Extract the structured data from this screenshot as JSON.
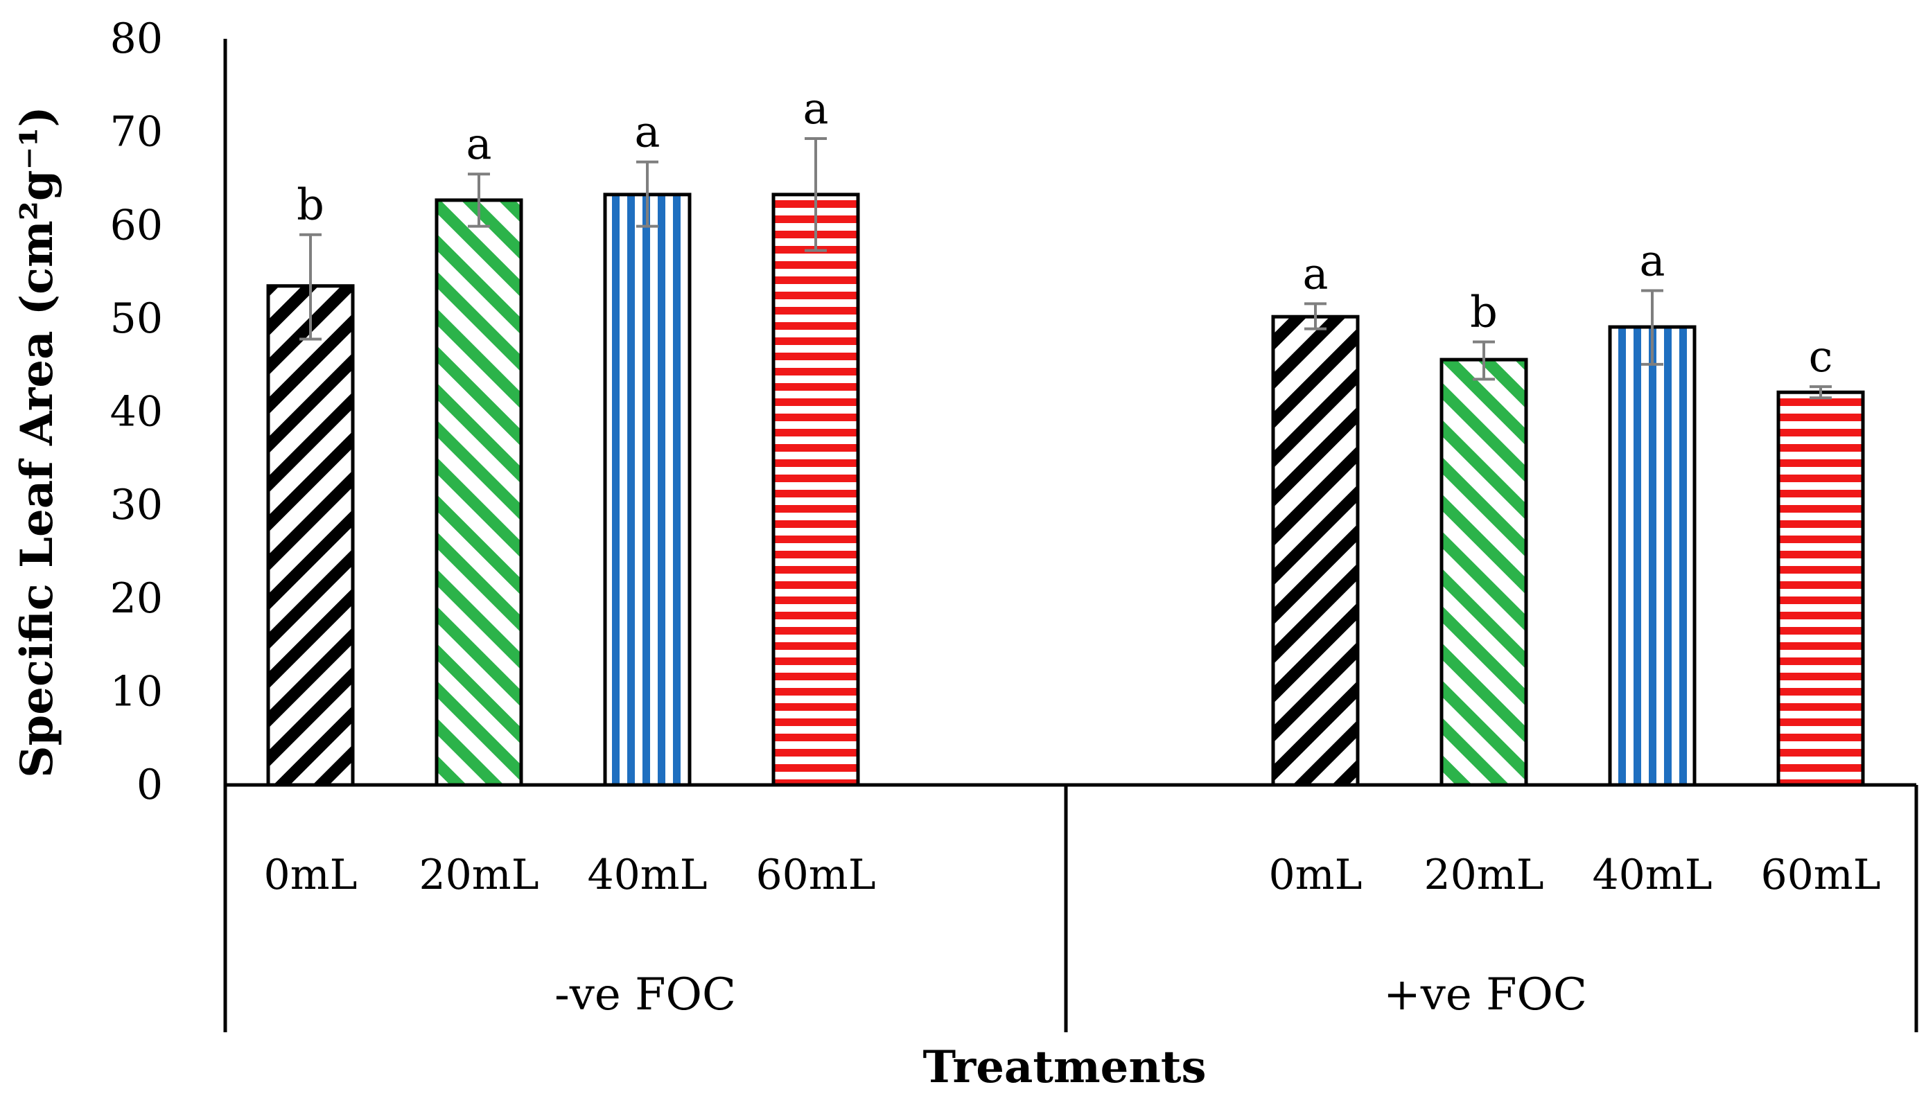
{
  "chart_data": {
    "type": "bar",
    "title": "",
    "ylabel": "Specific Leaf Area (cm²g⁻¹)",
    "xlabel": "Treatments",
    "ylim": [
      0,
      80
    ],
    "yticks": [
      "0",
      "10",
      "20",
      "30",
      "40",
      "50",
      "60",
      "70",
      "80"
    ],
    "grid": false,
    "legend": "none",
    "groups": [
      {
        "name": "-ve FOC",
        "bars": [
          {
            "category": "0mL",
            "value": 53.5,
            "err_low": 47.8,
            "err_high": 59.0,
            "sig": "b",
            "pattern": "black-diagonal"
          },
          {
            "category": "20mL",
            "value": 62.7,
            "err_low": 59.9,
            "err_high": 65.5,
            "sig": "a",
            "pattern": "green-diagonal"
          },
          {
            "category": "40mL",
            "value": 63.3,
            "err_low": 59.9,
            "err_high": 66.8,
            "sig": "a",
            "pattern": "blue-vertical"
          },
          {
            "category": "60mL",
            "value": 63.3,
            "err_low": 57.3,
            "err_high": 69.3,
            "sig": "a",
            "pattern": "red-horizontal"
          }
        ]
      },
      {
        "name": "+ve FOC",
        "bars": [
          {
            "category": "0mL",
            "value": 50.2,
            "err_low": 48.9,
            "err_high": 51.6,
            "sig": "a",
            "pattern": "black-diagonal"
          },
          {
            "category": "20mL",
            "value": 45.6,
            "err_low": 43.5,
            "err_high": 47.5,
            "sig": "b",
            "pattern": "green-diagonal"
          },
          {
            "category": "40mL",
            "value": 49.1,
            "err_low": 45.1,
            "err_high": 53.0,
            "sig": "a",
            "pattern": "blue-vertical"
          },
          {
            "category": "60mL",
            "value": 42.1,
            "err_low": 41.5,
            "err_high": 42.7,
            "sig": "c",
            "pattern": "red-horizontal"
          }
        ]
      }
    ],
    "colors": {
      "black-diagonal": "#000000",
      "green-diagonal": "#2cb34a",
      "blue-vertical": "#1f6fc0",
      "red-horizontal": "#f01818",
      "error_bar": "#7f7f7f",
      "axis": "#000000"
    }
  }
}
